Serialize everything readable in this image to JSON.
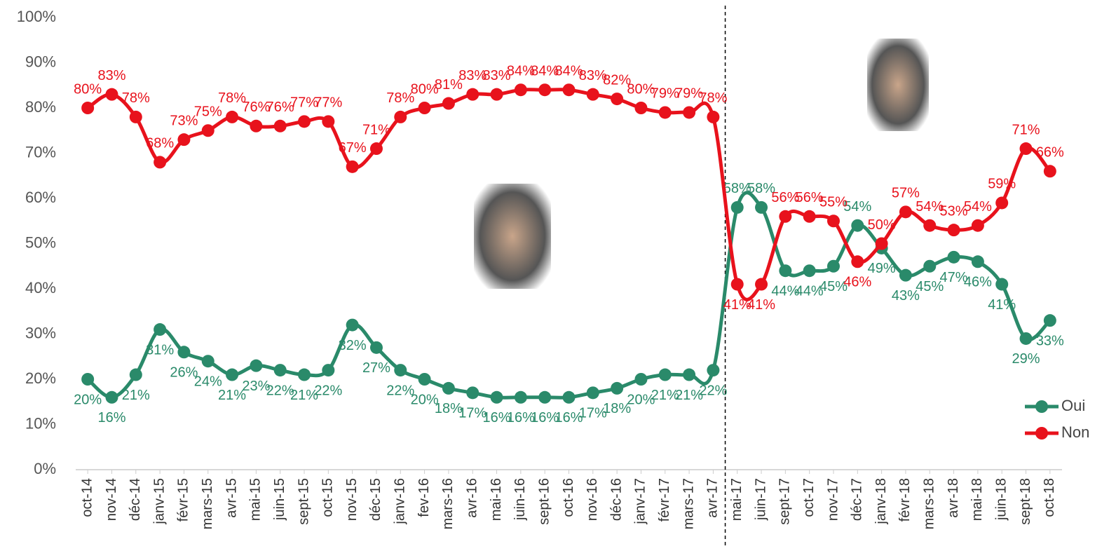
{
  "chart_data": {
    "type": "line",
    "categories": [
      "oct-14",
      "nov-14",
      "déc-14",
      "janv-15",
      "févr-15",
      "mars-15",
      "avr-15",
      "mai-15",
      "juin-15",
      "sept-15",
      "oct-15",
      "nov-15",
      "déc-15",
      "janv-16",
      "fev-16",
      "mars-16",
      "avr-16",
      "mai-16",
      "juin-16",
      "sept-16",
      "oct-16",
      "nov-16",
      "déc-16",
      "janv-17",
      "févr-17",
      "mars-17",
      "avr-17",
      "mai-17",
      "juin-17",
      "sept-17",
      "oct-17",
      "nov-17",
      "déc-17",
      "janv-18",
      "févr-18",
      "mars-18",
      "avr-18",
      "mai-18",
      "juin-18",
      "sept-18",
      "oct-18"
    ],
    "series": [
      {
        "name": "Oui",
        "color": "#2a8a6a",
        "values": [
          20,
          16,
          21,
          31,
          26,
          24,
          21,
          23,
          22,
          21,
          22,
          32,
          27,
          22,
          20,
          18,
          17,
          16,
          16,
          16,
          16,
          17,
          18,
          20,
          21,
          21,
          22,
          58,
          58,
          44,
          44,
          45,
          54,
          49,
          43,
          45,
          47,
          46,
          41,
          29,
          33
        ],
        "value_labels": [
          "20%",
          "16%",
          "21%",
          "31%",
          "26%",
          "24%",
          "21%",
          "23%",
          "22%",
          "21%",
          "22%",
          "32%",
          "27%",
          "22%",
          "20%",
          "18%",
          "17%",
          "16%",
          "16%",
          "16%",
          "16%",
          "17%",
          "18%",
          "20%",
          "21%",
          "21%",
          "22%",
          "58%",
          "58%",
          "44%",
          "44%",
          "45%",
          "54%",
          "49%",
          "43%",
          "45%",
          "47%",
          "46%",
          "41%",
          "29%",
          "33%"
        ]
      },
      {
        "name": "Non",
        "color": "#e8121c",
        "values": [
          80,
          83,
          78,
          68,
          73,
          75,
          78,
          76,
          76,
          77,
          77,
          67,
          71,
          78,
          80,
          81,
          83,
          83,
          84,
          84,
          84,
          83,
          82,
          80,
          79,
          79,
          78,
          41,
          41,
          56,
          56,
          55,
          46,
          50,
          57,
          54,
          53,
          54,
          59,
          71,
          66
        ],
        "value_labels": [
          "80%",
          "83%",
          "78%",
          "68%",
          "73%",
          "75%",
          "78%",
          "76%",
          "76%",
          "77%",
          "77%",
          "67%",
          "71%",
          "78%",
          "80%",
          "81%",
          "83%",
          "83%",
          "84%",
          "84%",
          "84%",
          "83%",
          "82%",
          "80%",
          "79%",
          "79%",
          "78%",
          "41%",
          "41%",
          "56%",
          "56%",
          "55%",
          "46%",
          "50%",
          "57%",
          "54%",
          "53%",
          "54%",
          "59%",
          "71%",
          "66%"
        ]
      }
    ],
    "ylim": [
      0,
      100
    ],
    "yticks": [
      {
        "value": 0,
        "label": "0%"
      },
      {
        "value": 10,
        "label": "10%"
      },
      {
        "value": 20,
        "label": "20%"
      },
      {
        "value": 30,
        "label": "30%"
      },
      {
        "value": 40,
        "label": "40%"
      },
      {
        "value": 50,
        "label": "50%"
      },
      {
        "value": 60,
        "label": "60%"
      },
      {
        "value": 70,
        "label": "70%"
      },
      {
        "value": 80,
        "label": "80%"
      },
      {
        "value": 90,
        "label": "90%"
      },
      {
        "value": 100,
        "label": "100%"
      }
    ],
    "grid": false,
    "legend": "right"
  }
}
